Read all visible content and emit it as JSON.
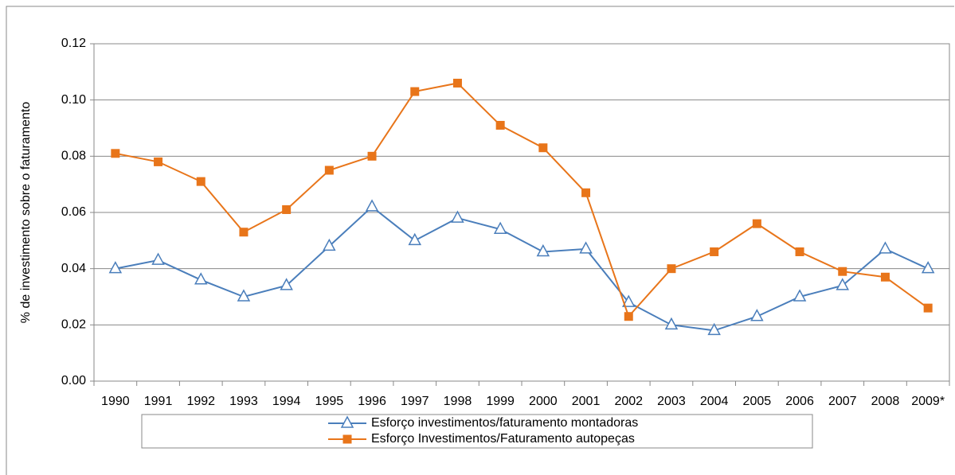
{
  "chart_data": {
    "type": "line",
    "y_label": "% de investimento sobre o faturamento",
    "categories": [
      "1990",
      "1991",
      "1992",
      "1993",
      "1994",
      "1995",
      "1996",
      "1997",
      "1998",
      "1999",
      "2000",
      "2001",
      "2002",
      "2003",
      "2004",
      "2005",
      "2006",
      "2007",
      "2008",
      "2009*"
    ],
    "series": [
      {
        "name": "Esforço investimentos/faturamento montadoras",
        "color": "#4a7ebb",
        "marker": "triangle",
        "values": [
          0.04,
          0.043,
          0.036,
          0.03,
          0.034,
          0.048,
          0.062,
          0.05,
          0.058,
          0.054,
          0.046,
          0.047,
          0.028,
          0.02,
          0.018,
          0.023,
          0.03,
          0.034,
          0.047,
          0.04
        ]
      },
      {
        "name": "Esforço Investimentos/Faturamento autopeças",
        "color": "#e8751a",
        "marker": "square",
        "values": [
          0.081,
          0.078,
          0.071,
          0.053,
          0.061,
          0.075,
          0.08,
          0.103,
          0.106,
          0.091,
          0.083,
          0.067,
          0.023,
          0.04,
          0.046,
          0.056,
          0.046,
          0.039,
          0.037,
          0.026
        ]
      }
    ],
    "ylim": [
      0,
      0.12
    ],
    "yticks": [
      {
        "value": 0,
        "label": "0.00"
      },
      {
        "value": 0.02,
        "label": "0.02"
      },
      {
        "value": 0.04,
        "label": "0.04"
      },
      {
        "value": 0.06,
        "label": "0.06"
      },
      {
        "value": 0.08,
        "label": "0.08"
      },
      {
        "value": 0.1,
        "label": "0.10"
      },
      {
        "value": 0.12,
        "label": "0.12"
      }
    ],
    "grid": true,
    "legend": "bottom"
  }
}
